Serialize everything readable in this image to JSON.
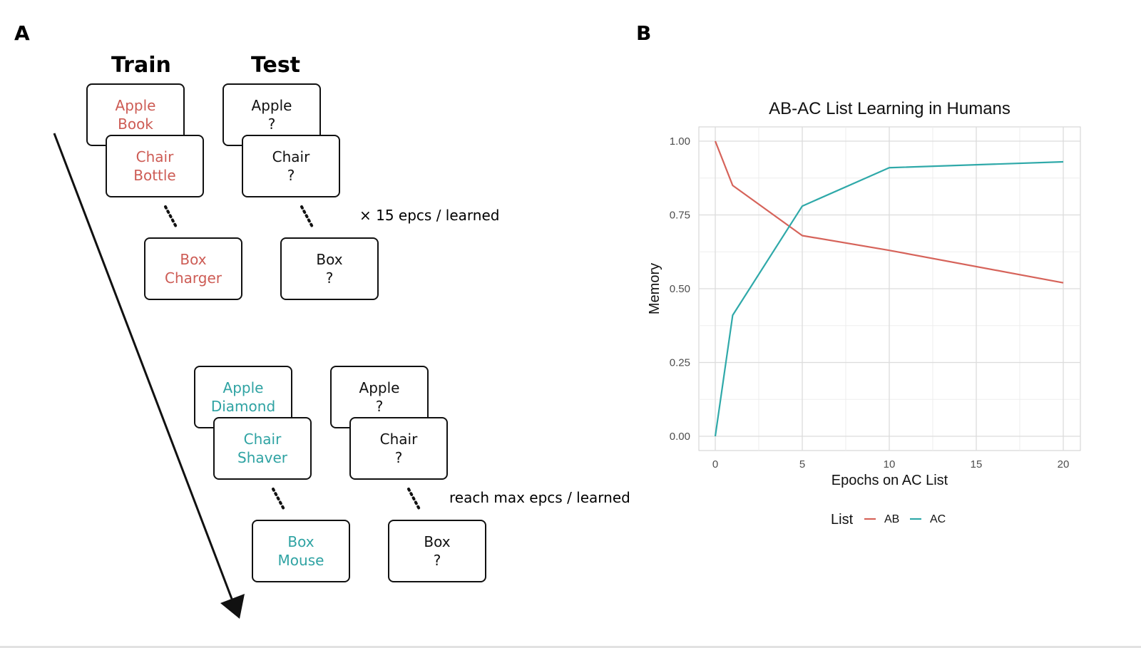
{
  "panel_a": {
    "label": "A",
    "train_heading": "Train",
    "test_heading": "Test",
    "phase1": {
      "train_cards": [
        {
          "cue": "Apple",
          "target": "Book"
        },
        {
          "cue": "Chair",
          "target": "Bottle"
        },
        {
          "cue": "Box",
          "target": "Charger"
        }
      ],
      "test_cards": [
        {
          "cue": "Apple",
          "target": "?"
        },
        {
          "cue": "Chair",
          "target": "?"
        },
        {
          "cue": "Box",
          "target": "?"
        }
      ],
      "note": "× 15 epcs / learned",
      "color": "#cd5c55"
    },
    "phase2": {
      "train_cards": [
        {
          "cue": "Apple",
          "target": "Diamond"
        },
        {
          "cue": "Chair",
          "target": "Shaver"
        },
        {
          "cue": "Box",
          "target": "Mouse"
        }
      ],
      "test_cards": [
        {
          "cue": "Apple",
          "target": "?"
        },
        {
          "cue": "Chair",
          "target": "?"
        },
        {
          "cue": "Box",
          "target": "?"
        }
      ],
      "note": "reach max epcs / learned",
      "color": "#2fa3a3"
    }
  },
  "panel_b": {
    "label": "B"
  },
  "chart_data": {
    "type": "line",
    "title": "AB-AC List Learning in Humans",
    "xlabel": "Epochs on AC List",
    "ylabel": "Memory",
    "xlim": [
      0,
      20
    ],
    "ylim": [
      0,
      1
    ],
    "xticks": [
      0,
      5,
      10,
      15,
      20
    ],
    "yticks": [
      0.0,
      0.25,
      0.5,
      0.75,
      1.0
    ],
    "ytick_labels": [
      "0.00",
      "0.25",
      "0.50",
      "0.75",
      "1.00"
    ],
    "xtick_labels": [
      "0",
      "5",
      "10",
      "15",
      "20"
    ],
    "grid": true,
    "legend": {
      "title": "List",
      "placement": "bottom"
    },
    "series": [
      {
        "name": "AB",
        "color": "#d6635a",
        "x": [
          0,
          1,
          5,
          10,
          20
        ],
        "y": [
          1.0,
          0.85,
          0.68,
          0.63,
          0.52
        ]
      },
      {
        "name": "AC",
        "color": "#2fa9a9",
        "x": [
          0,
          1,
          5,
          10,
          20
        ],
        "y": [
          0.0,
          0.41,
          0.78,
          0.91,
          0.93
        ]
      }
    ]
  }
}
